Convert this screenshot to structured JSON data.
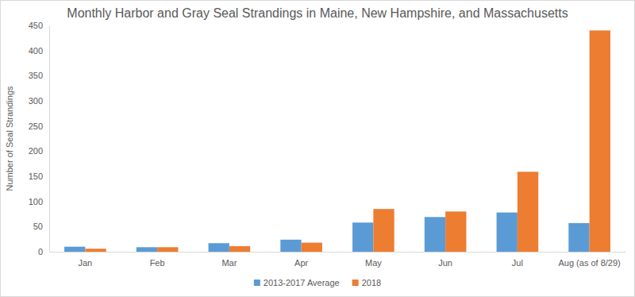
{
  "chart_data": {
    "type": "bar",
    "title": "Monthly Harbor and Gray Seal Strandings in Maine, New Hampshire, and Massachusetts",
    "y_label": "Number of Seal Strandings",
    "categories": [
      "Jan",
      "Feb",
      "Mar",
      "Apr",
      "May",
      "Jun",
      "Jul",
      "Aug (as of 8/29)"
    ],
    "series": [
      {
        "name": "2013-2017 Average",
        "color": "#5b9bd5",
        "values": [
          10,
          9,
          17,
          24,
          58,
          69,
          78,
          57
        ]
      },
      {
        "name": "2018",
        "color": "#ed7d31",
        "values": [
          6,
          9,
          11,
          18,
          85,
          80,
          159,
          440
        ]
      }
    ],
    "ylim": [
      0,
      450
    ],
    "yticks": [
      0,
      50,
      100,
      150,
      200,
      250,
      300,
      350,
      400,
      450
    ],
    "grid": false,
    "legend": "bottom"
  }
}
